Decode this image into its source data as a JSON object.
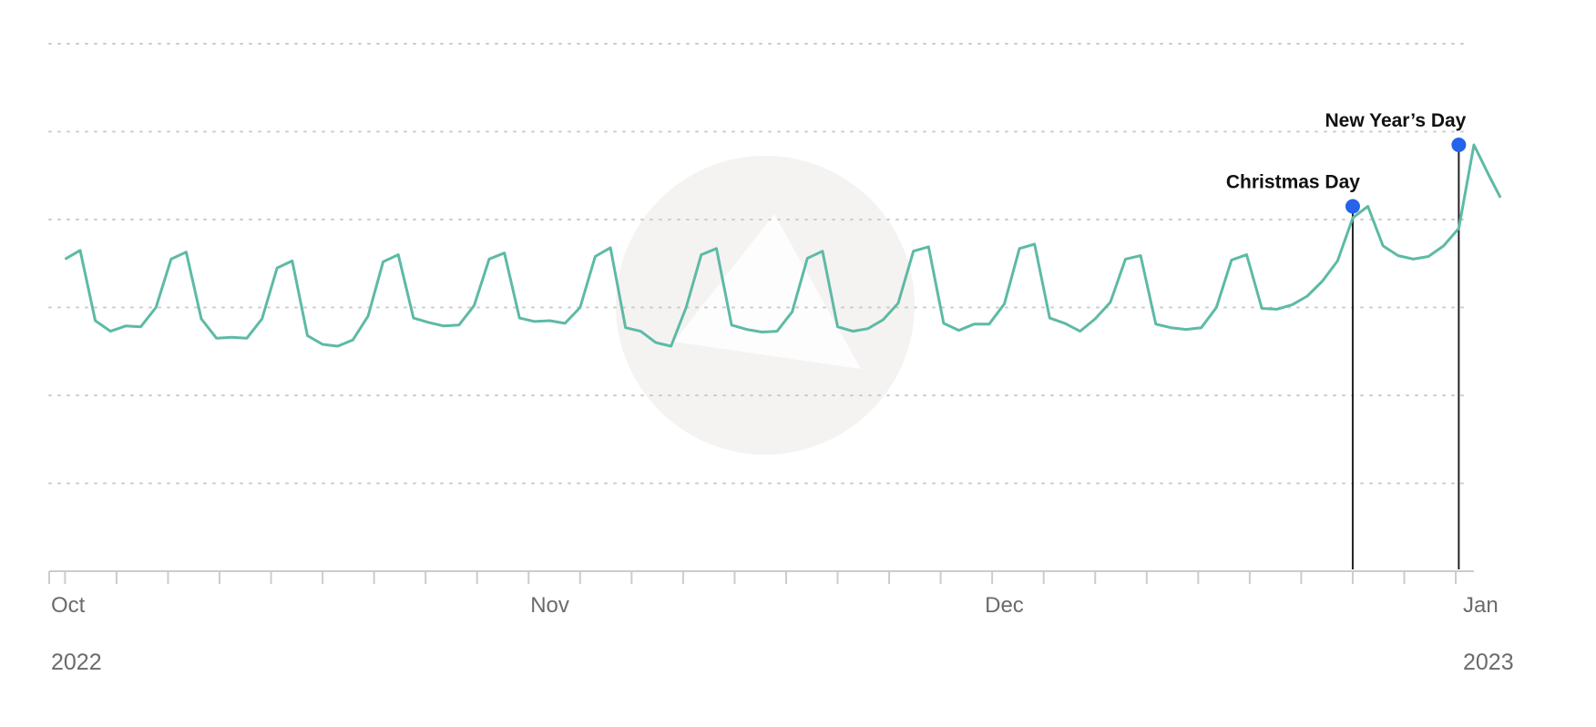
{
  "chart_data": {
    "type": "line",
    "title": "",
    "xlabel": "",
    "ylabel": "",
    "x_start": "2022-10-01",
    "x_end": "2023-01-01",
    "xlim": [
      "2022-10-01",
      "2023-01-01"
    ],
    "ylim": [
      0,
      60
    ],
    "grid": true,
    "y_gridlines": [
      10,
      20,
      30,
      40,
      50,
      60
    ],
    "y_tick_labels_shown": false,
    "x_ticks": [
      {
        "date": "2022-10-01",
        "label": "Oct"
      },
      {
        "date": "2022-11-01",
        "label": "Nov"
      },
      {
        "date": "2022-12-01",
        "label": "Dec"
      },
      {
        "date": "2023-01-01",
        "label": "Jan"
      }
    ],
    "year_labels": [
      {
        "date": "2022-10-01",
        "label": "2022"
      },
      {
        "date": "2023-01-01",
        "label": "2023"
      }
    ],
    "colors": {
      "line": "#5dbaa5",
      "marker": "#2563eb",
      "grid": "#cccccc",
      "axis": "#cccccc",
      "annotation_line": "#222222"
    },
    "series": [
      {
        "color": "#5dbaa5",
        "points": [
          {
            "x": "2022-09-30",
            "y": 35.5
          },
          {
            "x": "2022-10-01",
            "y": 36.5
          },
          {
            "x": "2022-10-02",
            "y": 28.5
          },
          {
            "x": "2022-10-03",
            "y": 27.3
          },
          {
            "x": "2022-10-04",
            "y": 27.9
          },
          {
            "x": "2022-10-05",
            "y": 27.8
          },
          {
            "x": "2022-10-06",
            "y": 30.0
          },
          {
            "x": "2022-10-07",
            "y": 35.5
          },
          {
            "x": "2022-10-08",
            "y": 36.3
          },
          {
            "x": "2022-10-09",
            "y": 28.7
          },
          {
            "x": "2022-10-10",
            "y": 26.5
          },
          {
            "x": "2022-10-11",
            "y": 26.6
          },
          {
            "x": "2022-10-12",
            "y": 26.5
          },
          {
            "x": "2022-10-13",
            "y": 28.7
          },
          {
            "x": "2022-10-14",
            "y": 34.5
          },
          {
            "x": "2022-10-15",
            "y": 35.3
          },
          {
            "x": "2022-10-16",
            "y": 26.8
          },
          {
            "x": "2022-10-17",
            "y": 25.8
          },
          {
            "x": "2022-10-18",
            "y": 25.6
          },
          {
            "x": "2022-10-19",
            "y": 26.3
          },
          {
            "x": "2022-10-20",
            "y": 29.0
          },
          {
            "x": "2022-10-21",
            "y": 35.2
          },
          {
            "x": "2022-10-22",
            "y": 36.0
          },
          {
            "x": "2022-10-23",
            "y": 28.8
          },
          {
            "x": "2022-10-24",
            "y": 28.3
          },
          {
            "x": "2022-10-25",
            "y": 27.9
          },
          {
            "x": "2022-10-26",
            "y": 28.0
          },
          {
            "x": "2022-10-27",
            "y": 30.2
          },
          {
            "x": "2022-10-28",
            "y": 35.5
          },
          {
            "x": "2022-10-29",
            "y": 36.2
          },
          {
            "x": "2022-10-30",
            "y": 28.8
          },
          {
            "x": "2022-10-31",
            "y": 28.4
          },
          {
            "x": "2022-11-01",
            "y": 28.5
          },
          {
            "x": "2022-11-02",
            "y": 28.2
          },
          {
            "x": "2022-11-03",
            "y": 30.0
          },
          {
            "x": "2022-11-04",
            "y": 35.8
          },
          {
            "x": "2022-11-05",
            "y": 36.8
          },
          {
            "x": "2022-11-06",
            "y": 27.7
          },
          {
            "x": "2022-11-07",
            "y": 27.3
          },
          {
            "x": "2022-11-08",
            "y": 26.0
          },
          {
            "x": "2022-11-09",
            "y": 25.6
          },
          {
            "x": "2022-11-10",
            "y": 30.0
          },
          {
            "x": "2022-11-11",
            "y": 36.0
          },
          {
            "x": "2022-11-12",
            "y": 36.7
          },
          {
            "x": "2022-11-13",
            "y": 28.0
          },
          {
            "x": "2022-11-14",
            "y": 27.5
          },
          {
            "x": "2022-11-15",
            "y": 27.2
          },
          {
            "x": "2022-11-16",
            "y": 27.3
          },
          {
            "x": "2022-11-17",
            "y": 29.5
          },
          {
            "x": "2022-11-18",
            "y": 35.6
          },
          {
            "x": "2022-11-19",
            "y": 36.4
          },
          {
            "x": "2022-11-20",
            "y": 27.8
          },
          {
            "x": "2022-11-21",
            "y": 27.3
          },
          {
            "x": "2022-11-22",
            "y": 27.6
          },
          {
            "x": "2022-11-23",
            "y": 28.6
          },
          {
            "x": "2022-11-24",
            "y": 30.5
          },
          {
            "x": "2022-11-25",
            "y": 36.4
          },
          {
            "x": "2022-11-26",
            "y": 36.9
          },
          {
            "x": "2022-11-27",
            "y": 28.2
          },
          {
            "x": "2022-11-28",
            "y": 27.4
          },
          {
            "x": "2022-11-29",
            "y": 28.1
          },
          {
            "x": "2022-11-30",
            "y": 28.1
          },
          {
            "x": "2022-12-01",
            "y": 30.4
          },
          {
            "x": "2022-12-02",
            "y": 36.7
          },
          {
            "x": "2022-12-03",
            "y": 37.2
          },
          {
            "x": "2022-12-04",
            "y": 28.8
          },
          {
            "x": "2022-12-05",
            "y": 28.2
          },
          {
            "x": "2022-12-06",
            "y": 27.3
          },
          {
            "x": "2022-12-07",
            "y": 28.7
          },
          {
            "x": "2022-12-08",
            "y": 30.6
          },
          {
            "x": "2022-12-09",
            "y": 35.5
          },
          {
            "x": "2022-12-10",
            "y": 35.9
          },
          {
            "x": "2022-12-11",
            "y": 28.1
          },
          {
            "x": "2022-12-12",
            "y": 27.7
          },
          {
            "x": "2022-12-13",
            "y": 27.5
          },
          {
            "x": "2022-12-14",
            "y": 27.7
          },
          {
            "x": "2022-12-15",
            "y": 30.0
          },
          {
            "x": "2022-12-16",
            "y": 35.4
          },
          {
            "x": "2022-12-17",
            "y": 36.0
          },
          {
            "x": "2022-12-18",
            "y": 29.9
          },
          {
            "x": "2022-12-19",
            "y": 29.8
          },
          {
            "x": "2022-12-20",
            "y": 30.3
          },
          {
            "x": "2022-12-21",
            "y": 31.3
          },
          {
            "x": "2022-12-22",
            "y": 33.0
          },
          {
            "x": "2022-12-23",
            "y": 35.3
          },
          {
            "x": "2022-12-24",
            "y": 40.2
          },
          {
            "x": "2022-12-25",
            "y": 41.5
          },
          {
            "x": "2022-12-26",
            "y": 37.0
          },
          {
            "x": "2022-12-27",
            "y": 35.9
          },
          {
            "x": "2022-12-28",
            "y": 35.5
          },
          {
            "x": "2022-12-29",
            "y": 35.8
          },
          {
            "x": "2022-12-30",
            "y": 37.0
          },
          {
            "x": "2022-12-31",
            "y": 39.0
          },
          {
            "x": "2023-01-01",
            "y": 48.5
          },
          {
            "x": "2023-01-02",
            "y": 45.0
          },
          {
            "x": "2023-01-02T18:00",
            "y": 42.5
          }
        ]
      }
    ],
    "annotations": [
      {
        "x": "2022-12-24",
        "y": 41.5,
        "label": "Christmas Day"
      },
      {
        "x": "2022-12-31",
        "y": 48.5,
        "label": "New Year’s Day"
      }
    ]
  }
}
